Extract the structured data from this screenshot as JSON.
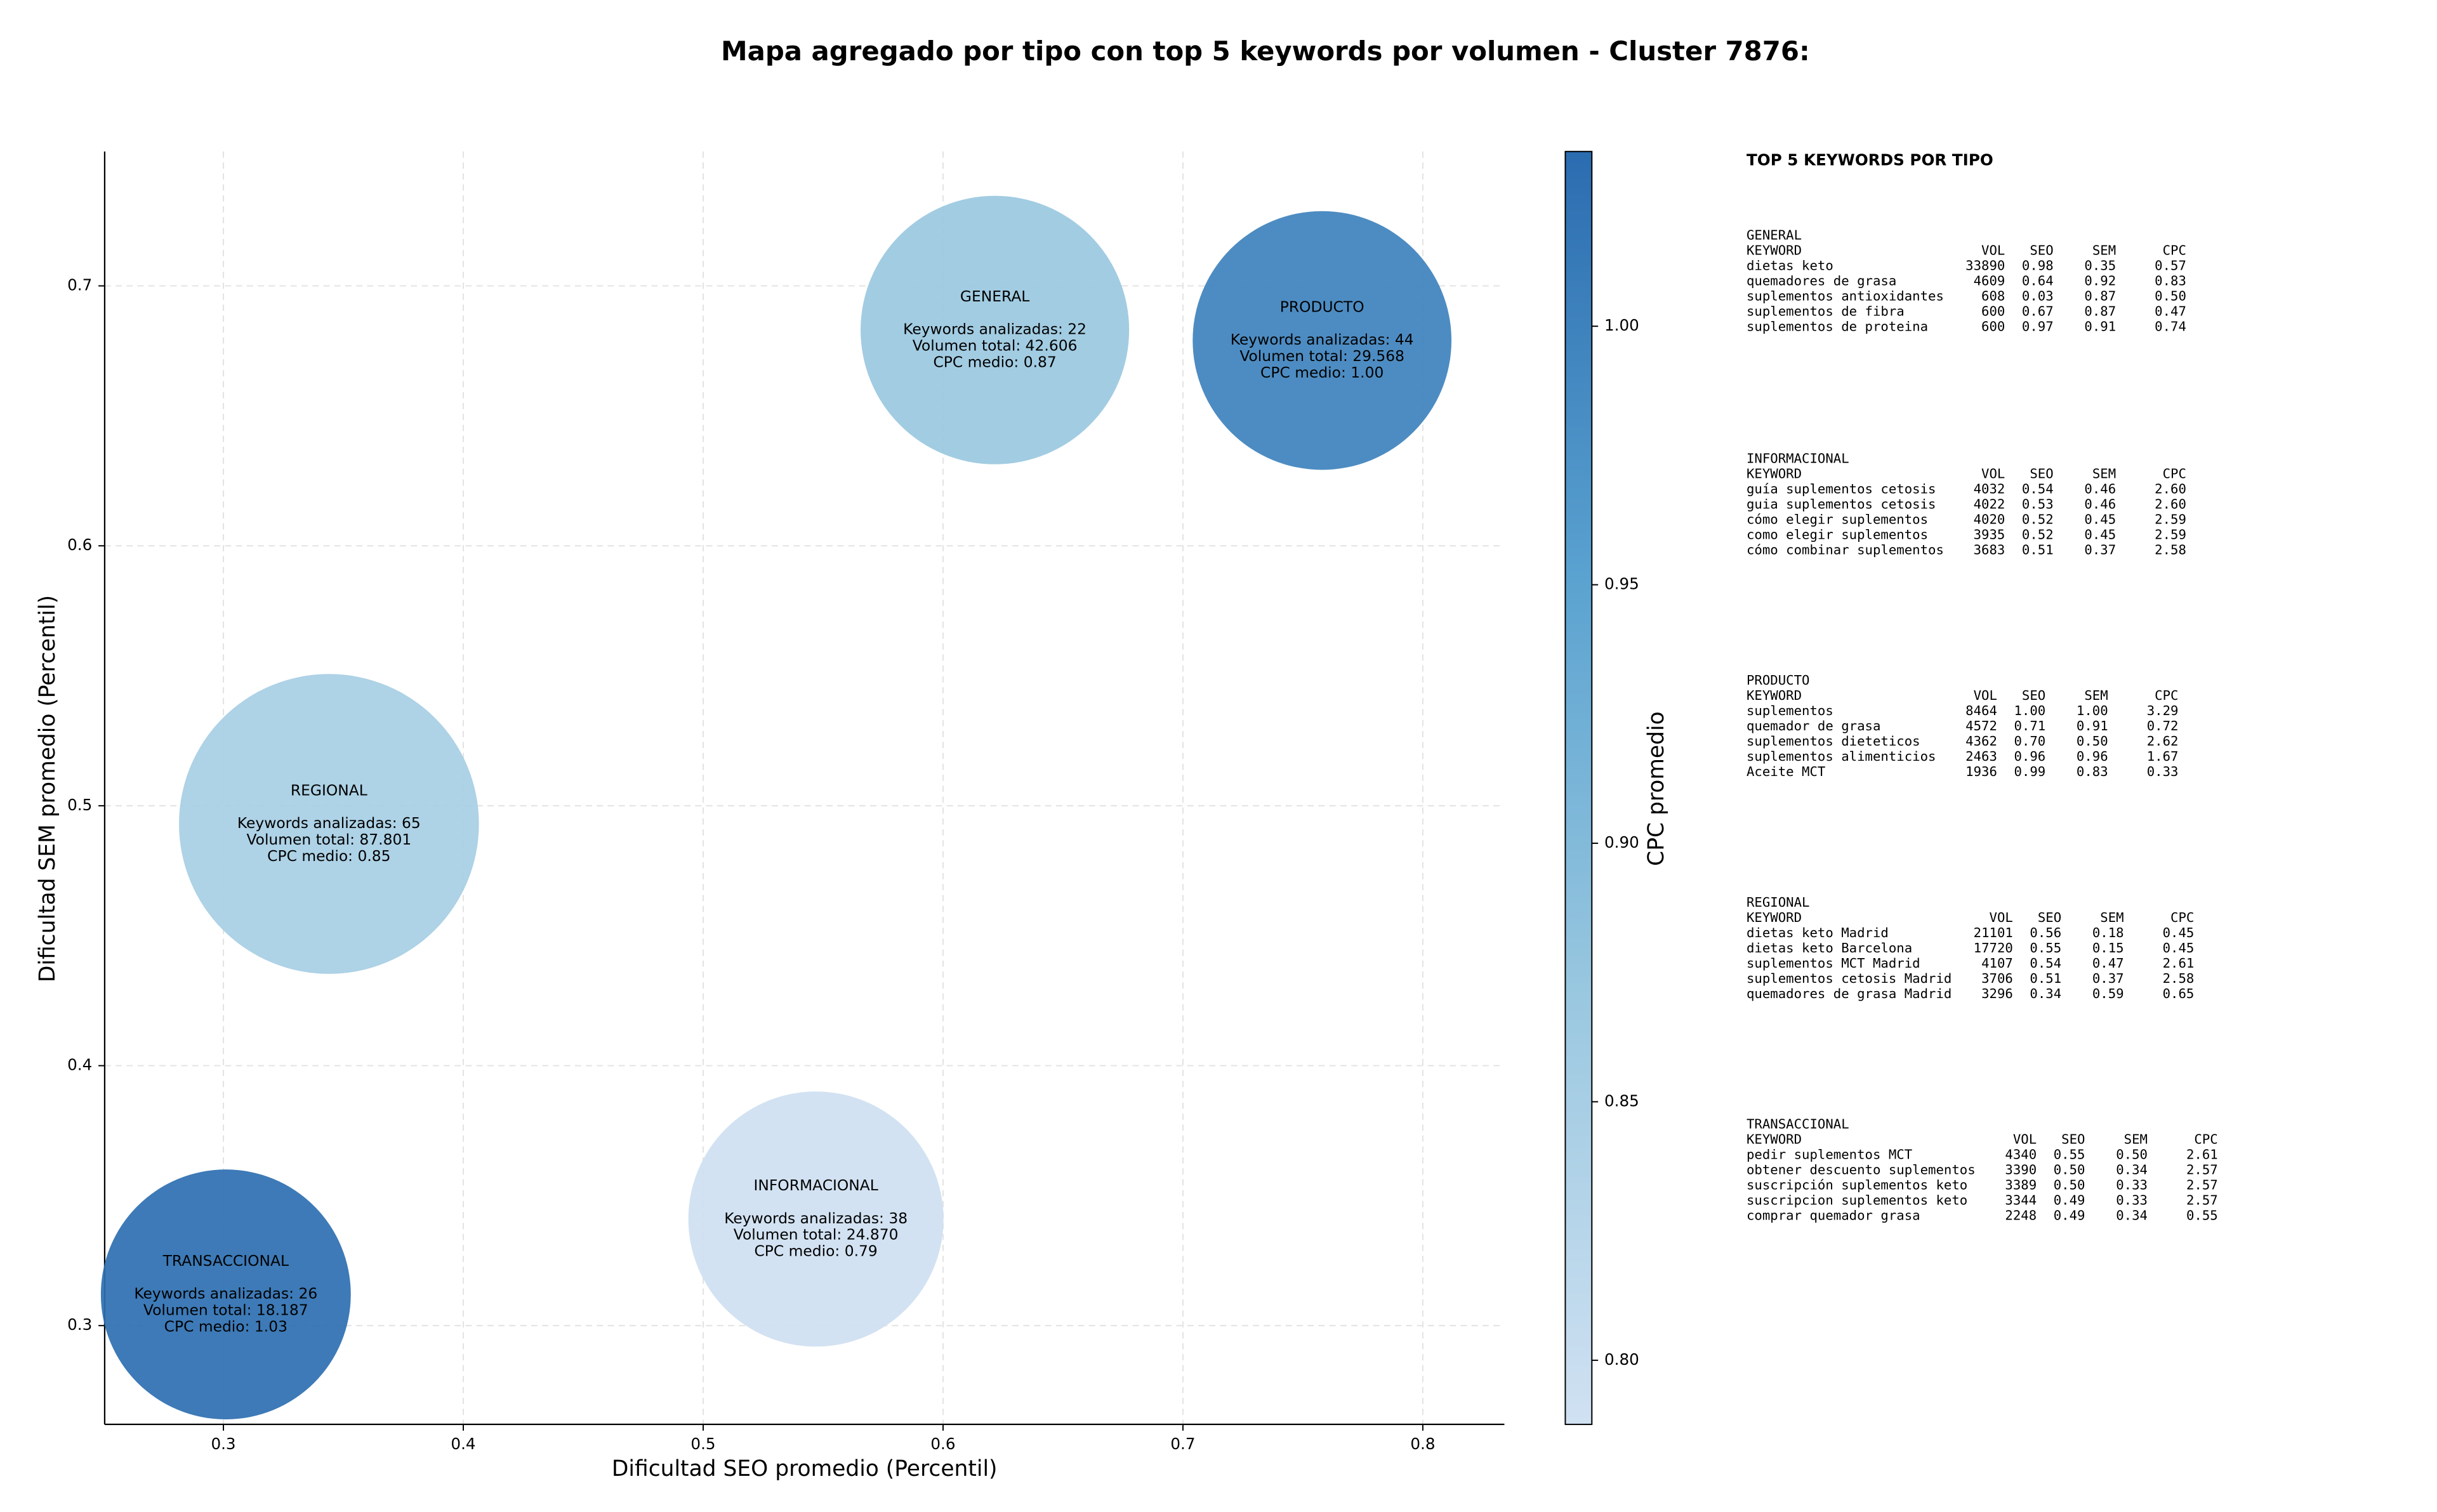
{
  "chart_data": {
    "type": "bubble",
    "title": "Mapa agregado por tipo con top 5 keywords por volumen - Cluster 7876:",
    "x_label": "Dificultad SEO promedio (Percentil)",
    "y_label": "Dificultad SEM promedio (Percentil)",
    "xlim": [
      0.2505,
      0.834
    ],
    "ylim": [
      0.262,
      0.7517
    ],
    "xticks": [
      0.3,
      0.4,
      0.5,
      0.6,
      0.7,
      0.8
    ],
    "yticks": [
      0.3,
      0.4,
      0.5,
      0.6,
      0.7
    ],
    "grid": true,
    "categories": [
      "GENERAL",
      "PRODUCTO",
      "REGIONAL",
      "INFORMACIONAL",
      "TRANSACCIONAL"
    ],
    "x": [
      0.6216,
      0.758,
      0.344,
      0.547,
      0.301
    ],
    "values": [
      0.683,
      0.679,
      0.493,
      0.341,
      0.312
    ],
    "keyword_labels": [
      "Keywords analizadas: 22",
      "Keywords analizadas: 44",
      "Keywords analizadas: 65",
      "Keywords analizadas: 38",
      "Keywords analizadas: 26"
    ],
    "sizes": [
      42606,
      29568,
      87801,
      24870,
      18187
    ],
    "size_labels": [
      "Volumen total: 42.606",
      "Volumen total: 29.568",
      "Volumen total: 87.801",
      "Volumen total: 24.870",
      "Volumen total: 18.187"
    ],
    "color_values": [
      0.87,
      1.0,
      0.85,
      0.79,
      1.03
    ],
    "color_labels": [
      "CPC medio: 0.87",
      "CPC medio: 1.00",
      "CPC medio: 0.85",
      "CPC medio: 0.79",
      "CPC medio: 1.03"
    ],
    "colorbar": {
      "label": "CPC promedio",
      "lim": [
        0.7876,
        1.0338
      ],
      "ticks": [
        {
          "value": 0.8,
          "label": "0.80"
        },
        {
          "value": 0.85,
          "label": "0.85"
        },
        {
          "value": 0.9,
          "label": "0.90"
        },
        {
          "value": 0.95,
          "label": "0.95"
        },
        {
          "value": 1.0,
          "label": "1.00"
        }
      ],
      "colormap": [
        "#d0e1f2",
        "#9ac8e0",
        "#5aa2d0",
        "#2b6cb0"
      ]
    }
  },
  "keywords_panel": {
    "title": "TOP 5 KEYWORDS POR TIPO",
    "groups": [
      {
        "name": "GENERAL",
        "header": [
          "KEYWORD",
          "VOL",
          "SEO",
          "SEM",
          "CPC"
        ],
        "rows": [
          [
            "dietas keto",
            "33890",
            "0.98",
            "0.35",
            "0.57"
          ],
          [
            "quemadores de grasa",
            "4609",
            "0.64",
            "0.92",
            "0.83"
          ],
          [
            "suplementos antioxidantes",
            "608",
            "0.03",
            "0.87",
            "0.50"
          ],
          [
            "suplementos de fibra",
            "600",
            "0.67",
            "0.87",
            "0.47"
          ],
          [
            "suplementos de proteina",
            "600",
            "0.97",
            "0.91",
            "0.74"
          ]
        ]
      },
      {
        "name": "INFORMACIONAL",
        "header": [
          "KEYWORD",
          "VOL",
          "SEO",
          "SEM",
          "CPC"
        ],
        "rows": [
          [
            "guía suplementos cetosis",
            "4032",
            "0.54",
            "0.46",
            "2.60"
          ],
          [
            "guia suplementos cetosis",
            "4022",
            "0.53",
            "0.46",
            "2.60"
          ],
          [
            "cómo elegir suplementos",
            "4020",
            "0.52",
            "0.45",
            "2.59"
          ],
          [
            "como elegir suplementos",
            "3935",
            "0.52",
            "0.45",
            "2.59"
          ],
          [
            "cómo combinar suplementos",
            "3683",
            "0.51",
            "0.37",
            "2.58"
          ]
        ]
      },
      {
        "name": "PRODUCTO",
        "header": [
          "KEYWORD",
          "VOL",
          "SEO",
          "SEM",
          "CPC"
        ],
        "rows": [
          [
            "suplementos",
            "8464",
            "1.00",
            "1.00",
            "3.29"
          ],
          [
            "quemador de grasa",
            "4572",
            "0.71",
            "0.91",
            "0.72"
          ],
          [
            "suplementos dieteticos",
            "4362",
            "0.70",
            "0.50",
            "2.62"
          ],
          [
            "suplementos alimenticios",
            "2463",
            "0.96",
            "0.96",
            "1.67"
          ],
          [
            "Aceite MCT",
            "1936",
            "0.99",
            "0.83",
            "0.33"
          ]
        ]
      },
      {
        "name": "REGIONAL",
        "header": [
          "KEYWORD",
          "VOL",
          "SEO",
          "SEM",
          "CPC"
        ],
        "rows": [
          [
            "dietas keto Madrid",
            "21101",
            "0.56",
            "0.18",
            "0.45"
          ],
          [
            "dietas keto Barcelona",
            "17720",
            "0.55",
            "0.15",
            "0.45"
          ],
          [
            "suplementos MCT Madrid",
            "4107",
            "0.54",
            "0.47",
            "2.61"
          ],
          [
            "suplementos cetosis Madrid",
            "3706",
            "0.51",
            "0.37",
            "2.58"
          ],
          [
            "quemadores de grasa Madrid",
            "3296",
            "0.34",
            "0.59",
            "0.65"
          ]
        ]
      },
      {
        "name": "TRANSACCIONAL",
        "header": [
          "KEYWORD",
          "VOL",
          "SEO",
          "SEM",
          "CPC"
        ],
        "rows": [
          [
            "pedir suplementos MCT",
            "4340",
            "0.55",
            "0.50",
            "2.61"
          ],
          [
            "obtener descuento suplementos",
            "3390",
            "0.50",
            "0.34",
            "2.57"
          ],
          [
            "suscripción suplementos keto",
            "3389",
            "0.50",
            "0.33",
            "2.57"
          ],
          [
            "suscripcion suplementos keto",
            "3344",
            "0.49",
            "0.33",
            "2.57"
          ],
          [
            "comprar quemador grasa",
            "2248",
            "0.49",
            "0.34",
            "0.55"
          ]
        ]
      }
    ]
  }
}
